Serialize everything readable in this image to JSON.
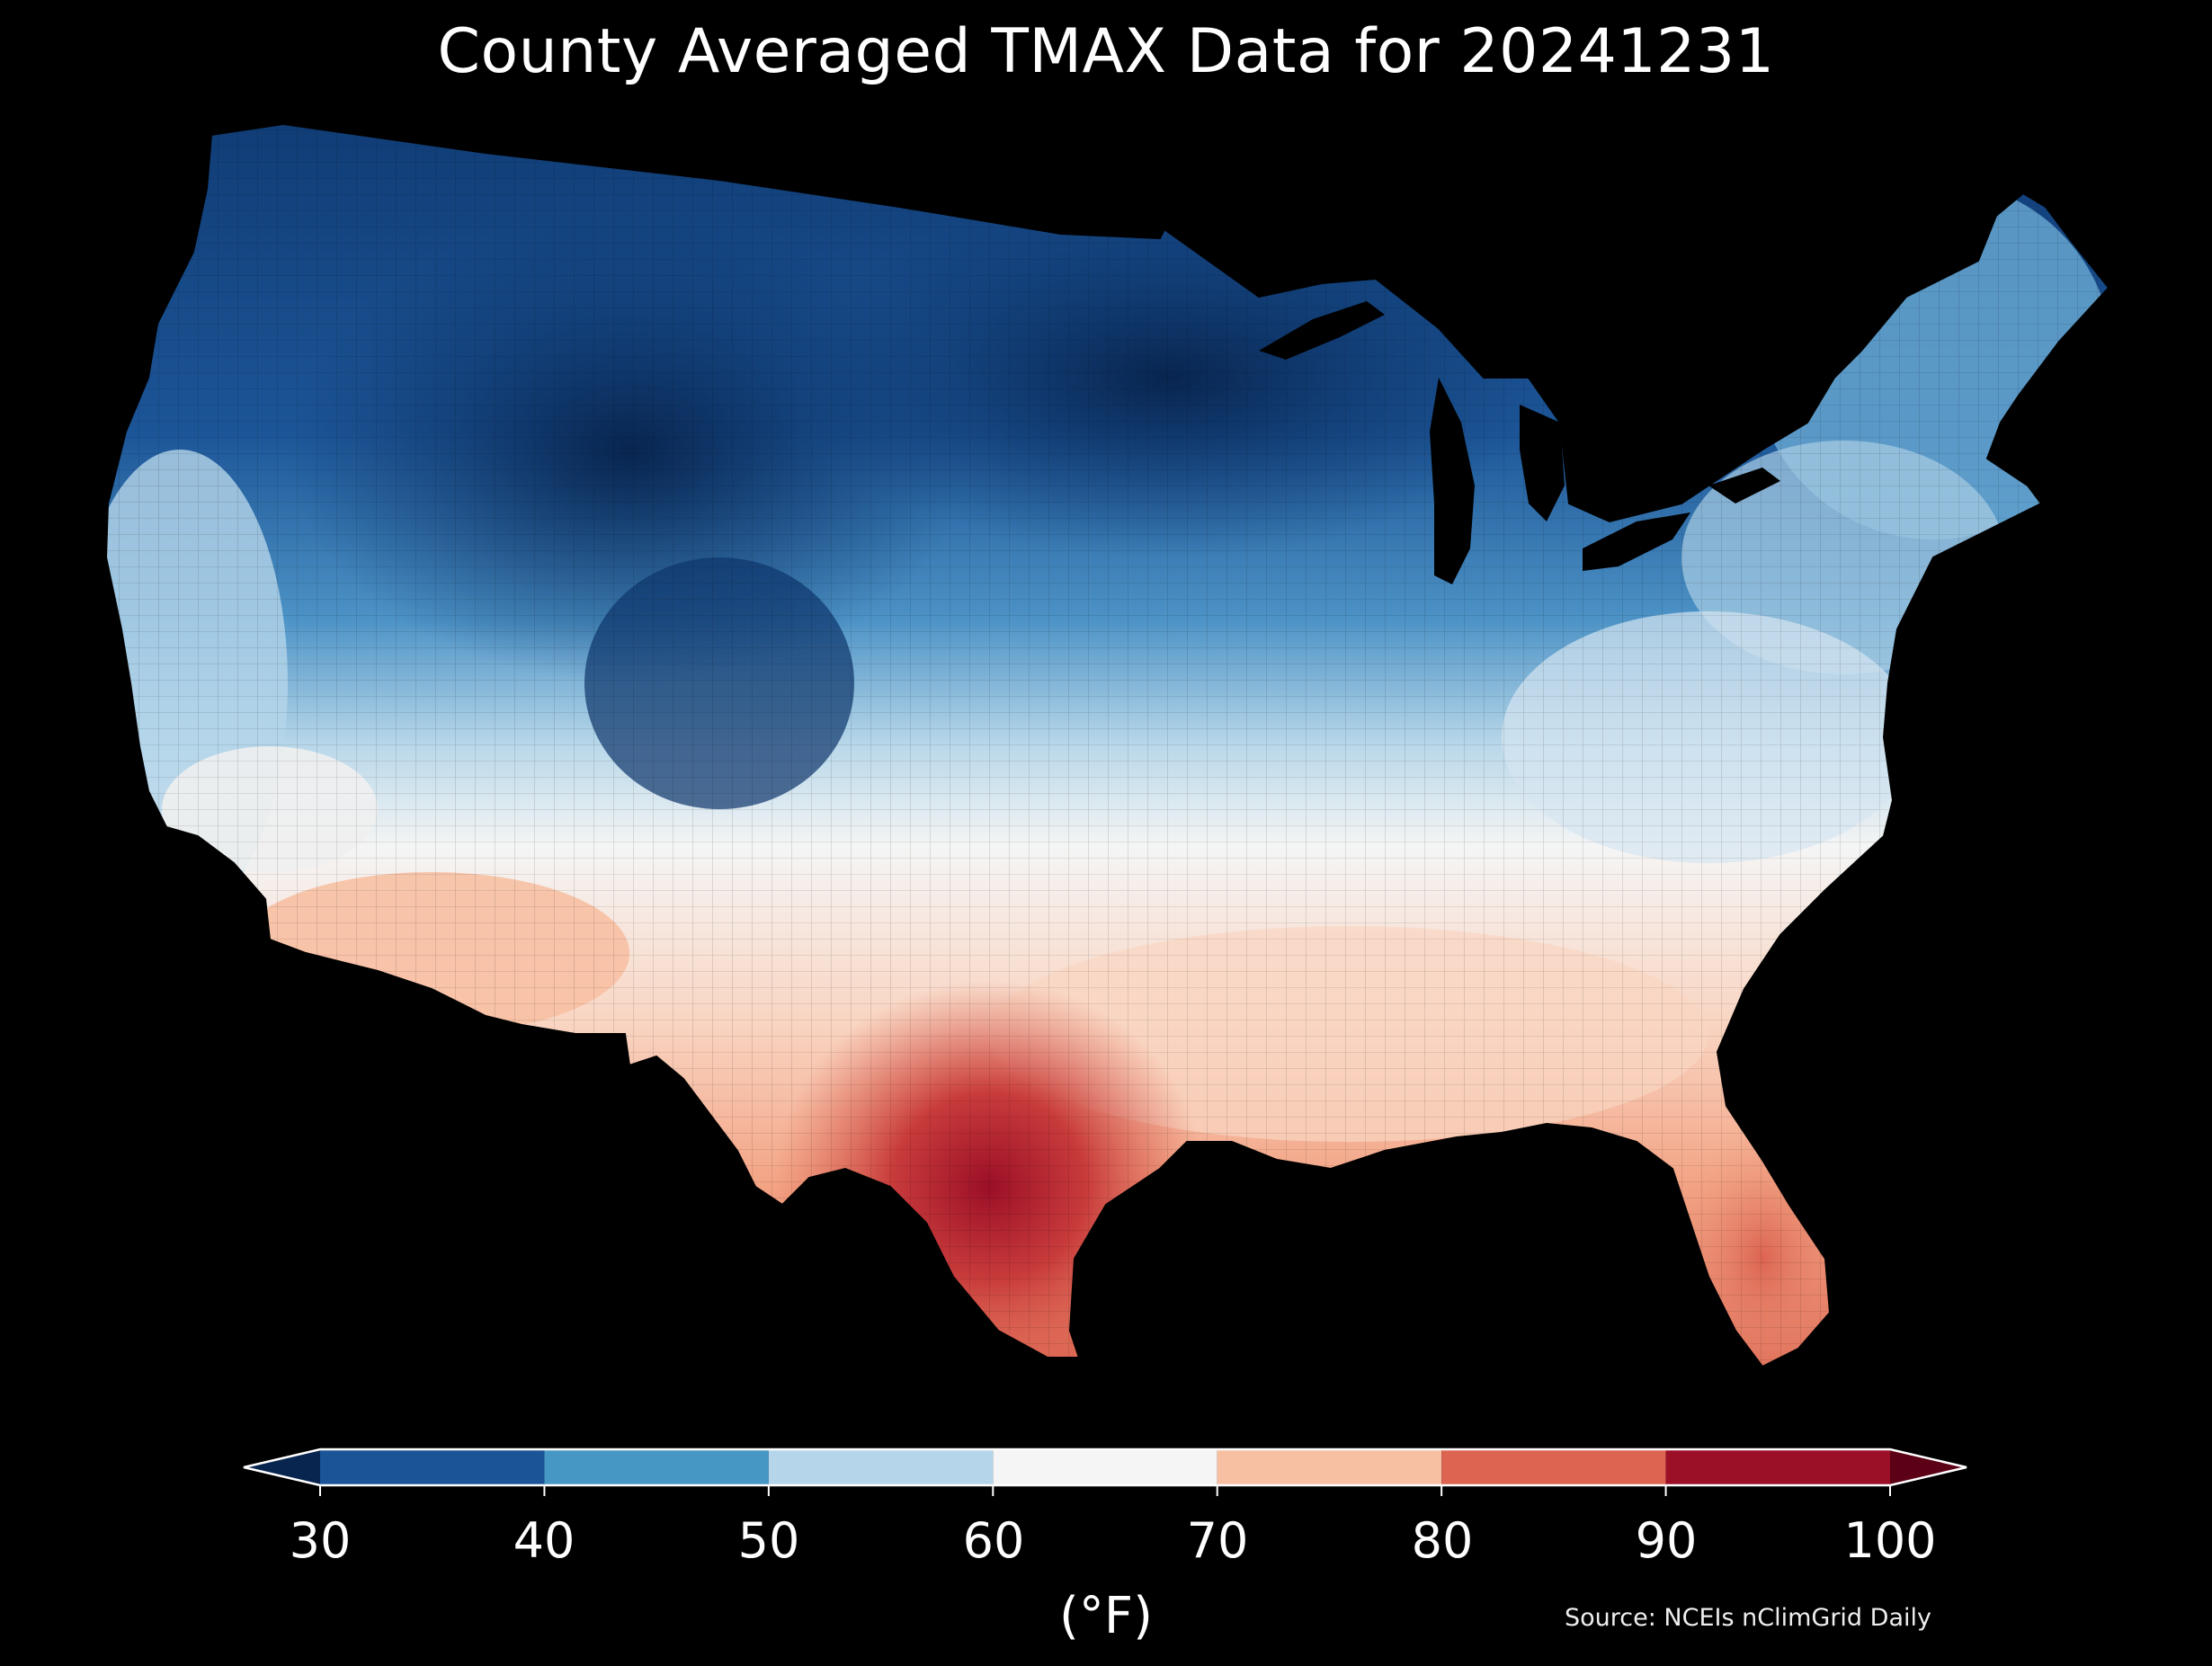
{
  "title": "County Averaged TMAX Data for 20241231",
  "colorbar": {
    "ticks": [
      "30",
      "40",
      "50",
      "60",
      "70",
      "80",
      "90",
      "100"
    ],
    "bins": [
      {
        "range": "<30",
        "color": "#08254f"
      },
      {
        "range": "30-40",
        "color": "#1c5597"
      },
      {
        "range": "40-50",
        "color": "#4797c5"
      },
      {
        "range": "50-60",
        "color": "#b5d6ea"
      },
      {
        "range": "60-70",
        "color": "#f5f5f5"
      },
      {
        "range": "70-80",
        "color": "#f7c0a3"
      },
      {
        "range": "80-90",
        "color": "#dc6450"
      },
      {
        "range": "90-100",
        "color": "#9b0f27"
      },
      {
        "range": ">100",
        "color": "#5c0015"
      }
    ],
    "unit": "(°F)"
  },
  "source": "Source: NCEIs nClimGrid Daily"
}
